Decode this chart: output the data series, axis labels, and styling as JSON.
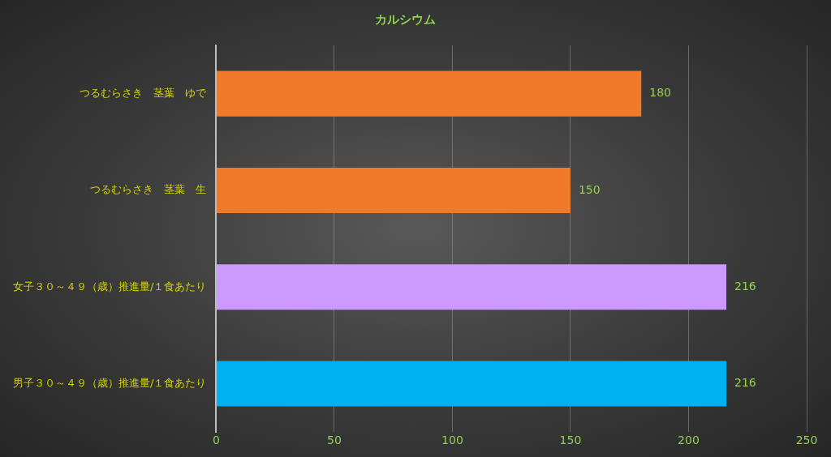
{
  "chart_data": {
    "type": "bar",
    "orientation": "horizontal",
    "title": "カルシウム",
    "categories": [
      "つるむらさき　茎葉　ゆで",
      "つるむらさき　茎葉　生",
      "女子３０～４９（歳）推進量/１食あたり",
      "男子３０～４９（歳）推進量/１食あたり"
    ],
    "values": [
      180,
      150,
      216,
      216
    ],
    "colors": [
      "#f07a2a",
      "#f07a2a",
      "#cc99ff",
      "#00b0f0"
    ],
    "xlim": [
      0,
      250
    ],
    "xticks": [
      0,
      50,
      100,
      150,
      200,
      250
    ],
    "grid": "x",
    "legend": false,
    "data_labels": true
  }
}
